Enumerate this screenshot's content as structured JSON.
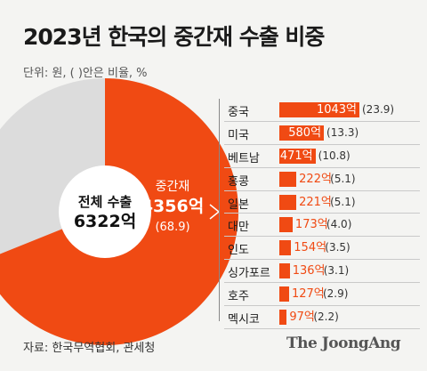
{
  "title": "2023년 한국의 중간재 수출 비중",
  "unit": "단위: 원, ( )안은 비율, %",
  "source": "자료: 한국무역협회, 관세청",
  "brand": "The JoongAng",
  "colors": {
    "accent": "#f04a13",
    "rest": "#dcdcdc",
    "center": "#ffffff"
  },
  "chart_data": [
    {
      "type": "pie",
      "total_label": "전체 수출",
      "total_value": "6322억",
      "slices": [
        {
          "label": "중간재",
          "value_label": "4356억",
          "share_label": "(68.9)",
          "value": 4356,
          "share": 68.9
        },
        {
          "label": "",
          "value": 1966,
          "share": 31.1
        }
      ]
    },
    {
      "type": "bar",
      "categories": [
        "중국",
        "미국",
        "베트남",
        "홍콩",
        "일본",
        "대만",
        "인도",
        "싱가포르",
        "호주",
        "멕시코"
      ],
      "values": [
        1043,
        580,
        471,
        222,
        221,
        173,
        154,
        136,
        127,
        97
      ],
      "value_labels": [
        "1043억",
        "580억",
        "471억",
        "222억",
        "221억",
        "173억",
        "154억",
        "136억",
        "127억",
        "97억"
      ],
      "shares": [
        23.9,
        13.3,
        10.8,
        5.1,
        5.1,
        4.0,
        3.5,
        3.1,
        2.9,
        2.2
      ],
      "share_labels": [
        "(23.9)",
        "(13.3)",
        "(10.8)",
        "(5.1)",
        "(5.1)",
        "(4.0)",
        "(3.5)",
        "(3.1)",
        "(2.9)",
        "(2.2)"
      ]
    }
  ]
}
